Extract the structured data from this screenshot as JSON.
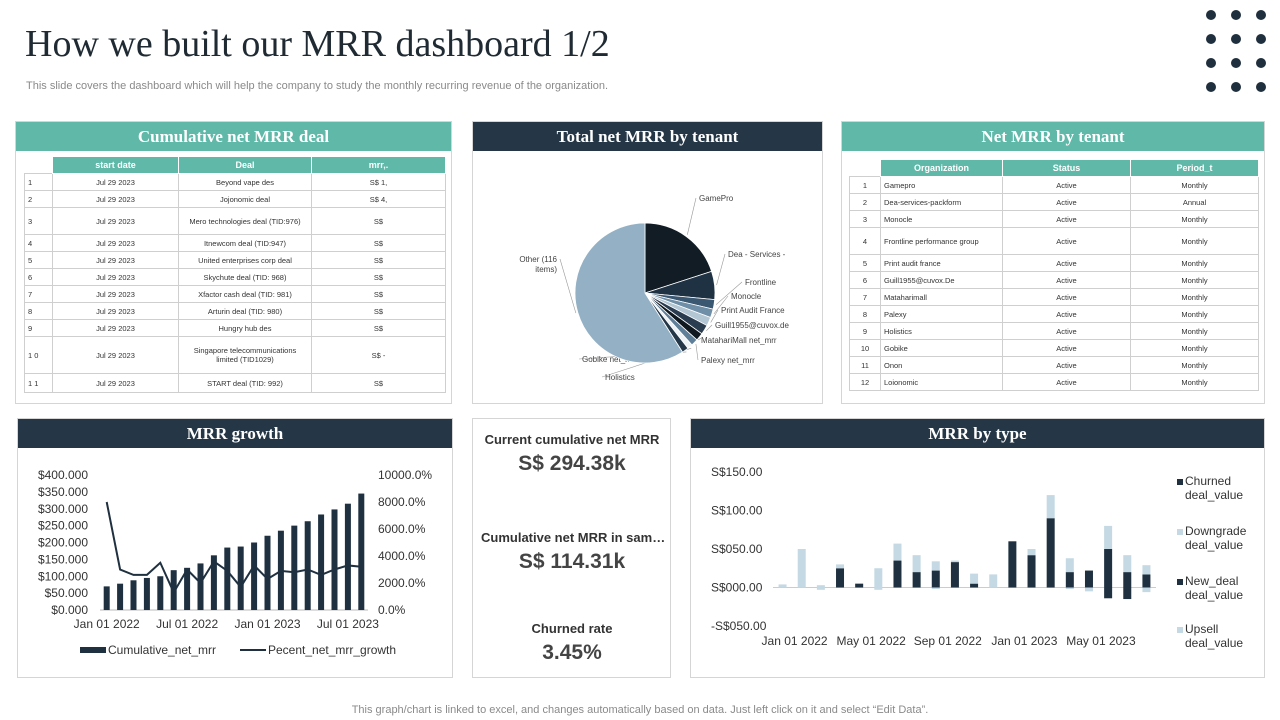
{
  "page": {
    "title": "How we built our MRR dashboard 1/2",
    "subtitle": "This slide covers the dashboard which will help the company to study the monthly recurring revenue of the organization.",
    "footer": "This graph/chart is linked to excel, and changes automatically based on data. Just left click on it and select “Edit Data”."
  },
  "cumulative": {
    "title": "Cumulative net MRR deal",
    "headers": [
      "start date",
      "Deal",
      "mrr,."
    ],
    "rows": [
      {
        "n": "1",
        "date": "Jul 29 2023",
        "deal": "Beyond vape des",
        "mrr": "S$ 1,"
      },
      {
        "n": "2",
        "date": "Jul 29 2023",
        "deal": "Jojonomic deal",
        "mrr": "S$ 4,"
      },
      {
        "n": "3",
        "date": "Jul 29 2023",
        "deal": "Mero technologies deal (TID:976)",
        "mrr": "S$"
      },
      {
        "n": "4",
        "date": "Jul 29 2023",
        "deal": "Itnewcom deal (TID:947)",
        "mrr": "S$"
      },
      {
        "n": "5",
        "date": "Jul 29 2023",
        "deal": "United enterprises corp deal",
        "mrr": "S$"
      },
      {
        "n": "6",
        "date": "Jul 29 2023",
        "deal": "Skychute deal (TID: 968)",
        "mrr": "S$"
      },
      {
        "n": "7",
        "date": "Jul 29 2023",
        "deal": "Xfactor cash deal (TID: 981)",
        "mrr": "S$"
      },
      {
        "n": "8",
        "date": "Jul 29 2023",
        "deal": "Arturin deal (TID: 980)",
        "mrr": "S$"
      },
      {
        "n": "9",
        "date": "Jul 29 2023",
        "deal": "Hungry hub des",
        "mrr": "S$"
      },
      {
        "n": "1 0",
        "date": "Jul 29 2023",
        "deal": "Singapore telecommunications limited (TID1029)",
        "mrr": "S$ -"
      },
      {
        "n": "1 1",
        "date": "Jul 29 2023",
        "deal": "START deal (TID: 992)",
        "mrr": "S$"
      }
    ]
  },
  "tenant_pie": {
    "title": "Total net MRR by tenant"
  },
  "tenant_table": {
    "title": "Net MRR by tenant",
    "headers": [
      "Organization",
      "Status",
      "Period_t"
    ],
    "rows": [
      {
        "n": "1",
        "org": "Gamepro",
        "status": "Active",
        "period": "Monthly"
      },
      {
        "n": "2",
        "org": "Dea-services-packform",
        "status": "Active",
        "period": "Annual"
      },
      {
        "n": "3",
        "org": "Monocle",
        "status": "Active",
        "period": "Monthly"
      },
      {
        "n": "4",
        "org": "Frontline performance group",
        "status": "Active",
        "period": "Monthly"
      },
      {
        "n": "5",
        "org": "Print audit france",
        "status": "Active",
        "period": "Monthly"
      },
      {
        "n": "6",
        "org": "Guill1955@cuvox.De",
        "status": "Active",
        "period": "Monthly"
      },
      {
        "n": "7",
        "org": "Mataharimall",
        "status": "Active",
        "period": "Monthly"
      },
      {
        "n": "8",
        "org": "Palexy",
        "status": "Active",
        "period": "Monthly"
      },
      {
        "n": "9",
        "org": "Holistics",
        "status": "Active",
        "period": "Monthly"
      },
      {
        "n": "10",
        "org": "Gobike",
        "status": "Active",
        "period": "Monthly"
      },
      {
        "n": "11",
        "org": "Onon",
        "status": "Active",
        "period": "Monthly"
      },
      {
        "n": "12",
        "org": "Loionomic",
        "status": "Active",
        "period": "Monthly"
      }
    ]
  },
  "growth": {
    "title": "MRR growth"
  },
  "kpis": [
    {
      "label": "Current cumulative net MRR",
      "value": "S$ 294.38k"
    },
    {
      "label": "Cumulative net MRR in sam…",
      "value": "S$ 114.31k"
    },
    {
      "label": "Churned rate",
      "value": "3.45%"
    }
  ],
  "type_chart": {
    "title": "MRR by type"
  },
  "colors": {
    "teal": "#5fb8a8",
    "navy": "#253746",
    "dark_bar": "#1f3040",
    "light_bar": "#c4d9e3",
    "pie_light": "#93b0c5"
  },
  "chart_data": [
    {
      "id": "pie",
      "type": "pie",
      "title": "Total net MRR by tenant",
      "slices": [
        {
          "label": "GamePro",
          "value": 20,
          "color": "#111c24"
        },
        {
          "label": "Dea - Services -",
          "value": 6.5,
          "color": "#1f3244"
        },
        {
          "label": "Frontline",
          "value": 2.2,
          "color": "#3b5872"
        },
        {
          "label": "Monocle",
          "value": 2.0,
          "color": "#6f8fa8"
        },
        {
          "label": "Print Audit France",
          "value": 2.0,
          "color": "#b3c6d4"
        },
        {
          "label": "Guill1955@cuvox.de",
          "value": 2.2,
          "color": "#2a3d50"
        },
        {
          "label": "MatahariMall net_mrr",
          "value": 1.8,
          "color": "#101820"
        },
        {
          "label": "Palexy net_mrr",
          "value": 1.6,
          "color": "#5f7f98"
        },
        {
          "label": "Holistics",
          "value": 1.2,
          "color": "#eef2f5"
        },
        {
          "label": "Gobike net_mrr",
          "value": 1.5,
          "color": "#243748"
        },
        {
          "label": "Other (116 items)",
          "value": 59,
          "color": "#93b0c5"
        }
      ]
    },
    {
      "id": "growth",
      "type": "bar+line",
      "title": "MRR growth",
      "categories_count": 20,
      "x_tick_labels": [
        "Jan 01 2022",
        "Jul 01 2022",
        "Jan 01 2023",
        "Jul 01 2023"
      ],
      "y_left_ticks": [
        "$400.000",
        "$350.000",
        "$300.000",
        "$250.000",
        "$200.000",
        "$150.000",
        "$100.000",
        "$50.000",
        "$0.000"
      ],
      "y_right_ticks": [
        "10000.0%",
        "8000.0%",
        "6000.0%",
        "4000.0%",
        "2000.0%",
        "0.0%"
      ],
      "ylim_left": [
        0,
        400000
      ],
      "ylim_right": [
        0,
        10000
      ],
      "series": [
        {
          "name": "Cumulative_net_mrr",
          "kind": "bar",
          "values": [
            70000,
            78000,
            88000,
            95000,
            100000,
            118000,
            125000,
            138000,
            162000,
            185000,
            188000,
            200000,
            220000,
            235000,
            250000,
            263000,
            283000,
            298000,
            315000,
            345000
          ]
        },
        {
          "name": "Pecent_net_mrr_growth",
          "kind": "line",
          "values": [
            8000,
            3000,
            2600,
            2600,
            3500,
            1300,
            3000,
            2000,
            3600,
            2900,
            1700,
            3300,
            2300,
            2900,
            2800,
            3000,
            2600,
            3000,
            3300,
            3200
          ]
        }
      ],
      "legend": [
        "Cumulative_net_mrr",
        "Pecent_net_mrr_growth"
      ]
    },
    {
      "id": "type",
      "type": "stacked bar",
      "title": "MRR by type",
      "categories_count": 20,
      "x_tick_labels": [
        "Jan 01 2022",
        "May 01 2022",
        "Sep  01 2022",
        "Jan 01 2023",
        "May 01 2023"
      ],
      "y_ticks": [
        "S$150.00",
        "S$100.00",
        "S$050.00",
        "S$000.00",
        "-S$050.00"
      ],
      "ylim": [
        -50,
        150
      ],
      "series": [
        {
          "name": "Churned deal_value",
          "values": [
            0,
            0,
            0,
            0,
            0,
            0,
            0,
            0,
            0,
            0,
            0,
            0,
            0,
            0,
            0,
            0,
            0,
            -14,
            -15,
            0
          ]
        },
        {
          "name": "Downgrade deal_value",
          "values": [
            0,
            0,
            -3,
            0,
            0,
            -3,
            0,
            0,
            -2,
            0,
            0,
            0,
            0,
            0,
            0,
            -2,
            -5,
            0,
            0,
            -6
          ]
        },
        {
          "name": "New_deal deal_value",
          "values": [
            0,
            0,
            0,
            25,
            5,
            0,
            35,
            20,
            22,
            33,
            5,
            0,
            60,
            42,
            90,
            20,
            22,
            50,
            20,
            17
          ]
        },
        {
          "name": "Upsell deal_value",
          "values": [
            4,
            50,
            3,
            5,
            0,
            25,
            22,
            22,
            12,
            2,
            13,
            17,
            0,
            8,
            30,
            18,
            0,
            30,
            22,
            12
          ]
        }
      ],
      "legend": [
        "Churned deal_value",
        "Downgrade deal_value",
        "New_deal deal_value",
        "Upsell deal_value"
      ]
    }
  ]
}
